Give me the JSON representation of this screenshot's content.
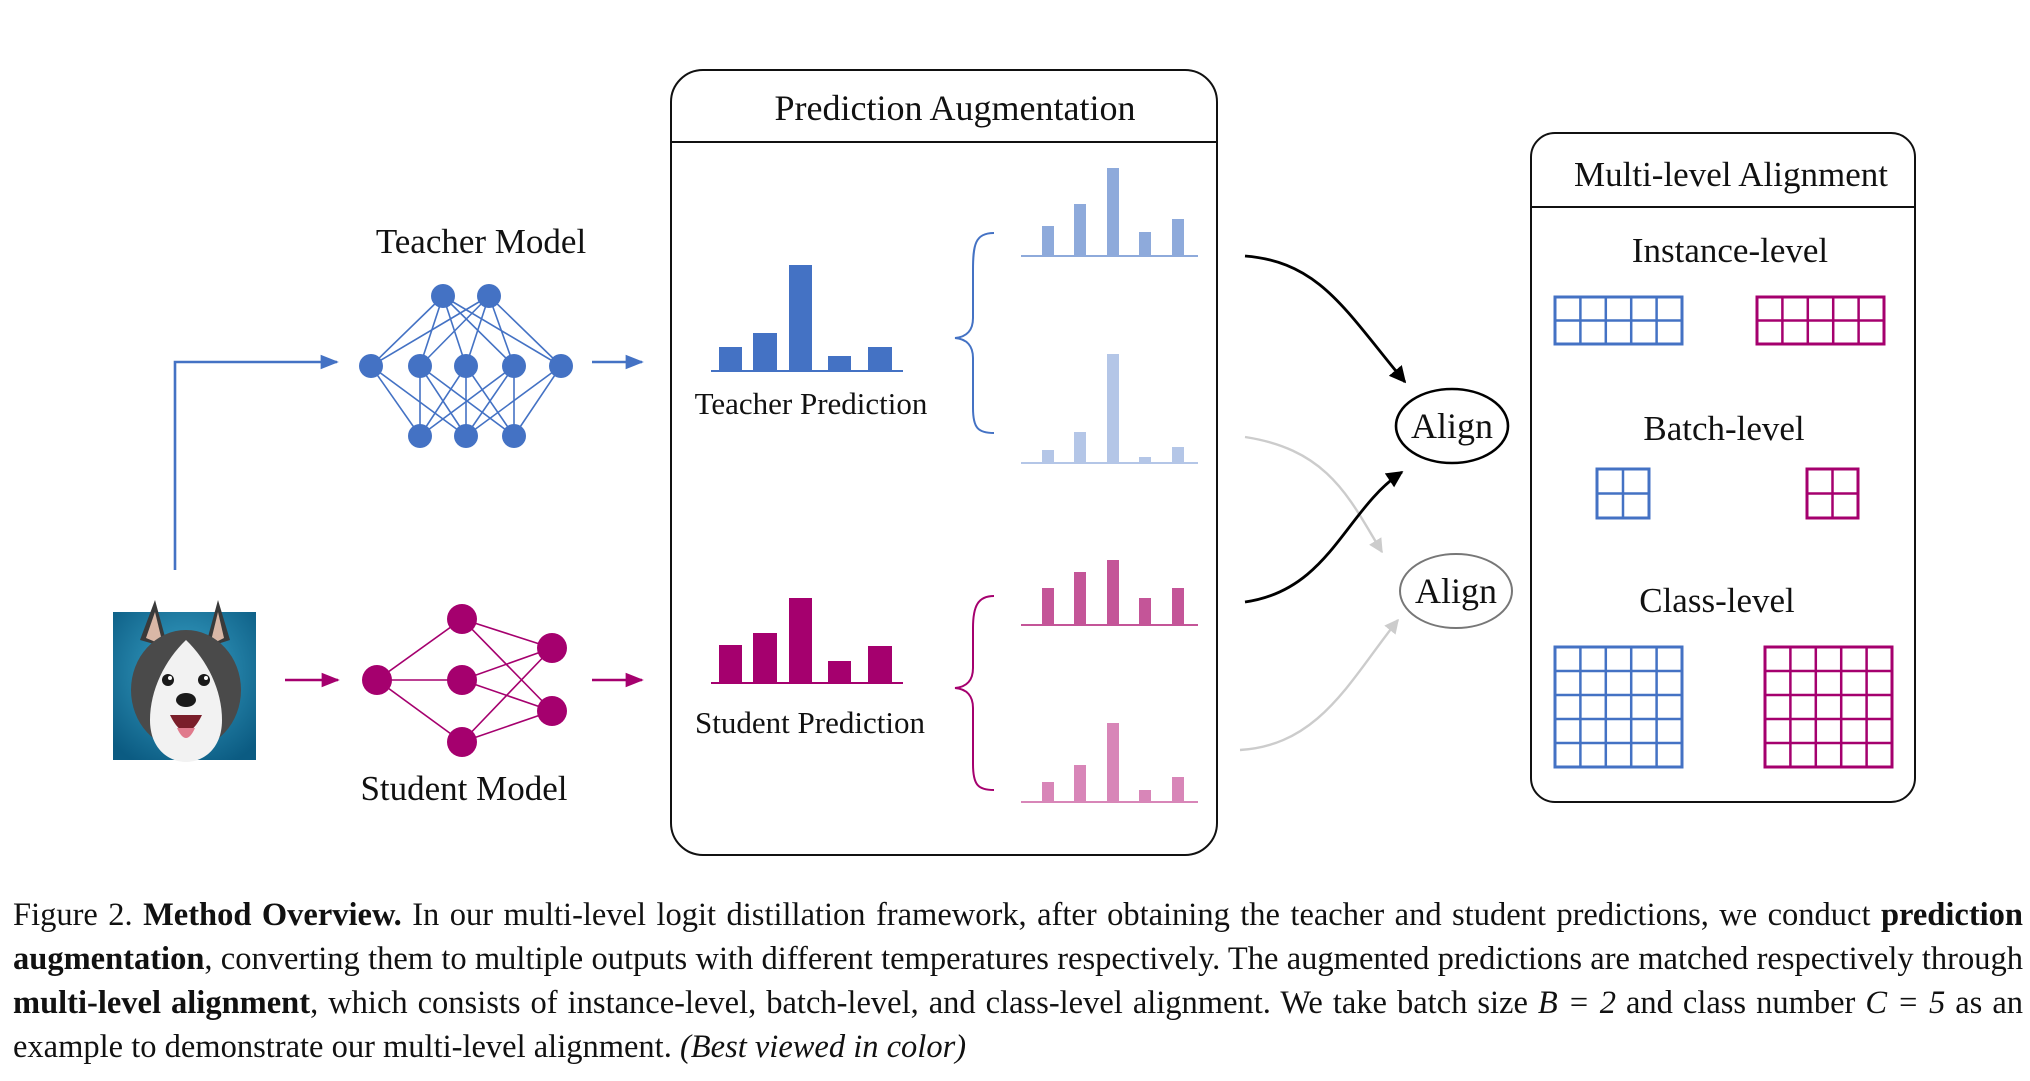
{
  "figure": {
    "teacher_model_label": "Teacher Model",
    "student_model_label": "Student Model",
    "prediction_augmentation_title": "Prediction Augmentation",
    "teacher_prediction_label": "Teacher Prediction",
    "student_prediction_label": "Student Prediction",
    "align_label_1": "Align",
    "align_label_2": "Align",
    "multi_level_alignment_title": "Multi-level Alignment",
    "instance_level_label": "Instance-level",
    "batch_level_label": "Batch-level",
    "class_level_label": "Class-level",
    "input_image": "husky dog photo",
    "colors": {
      "teacher": "#4472c4",
      "teacher_light": "#8eaadb",
      "teacher_lighter": "#b4c6e7",
      "student": "#a5006e",
      "student_light": "#c45598",
      "student_lighter": "#d886b8",
      "black_arrow": "#000000",
      "gray_arrow": "#cccccc"
    },
    "grids": {
      "instance_level": {
        "rows": 2,
        "cols": 5
      },
      "batch_level": {
        "rows": 2,
        "cols": 2
      },
      "class_level": {
        "rows": 5,
        "cols": 5
      }
    }
  },
  "caption": {
    "figure_number": "Figure 2.",
    "title": "Method Overview.",
    "text_1": " In our multi-level logit distillation framework, after obtaining the teacher and student predictions, we conduct ",
    "bold_1": "prediction augmentation",
    "text_2": ", converting them to multiple outputs with different temperatures respectively. The augmented predictions are matched respectively through ",
    "bold_2": "multi-level alignment",
    "text_3": ", which consists of instance-level, batch-level, and class-level alignment. We take batch size ",
    "math_b": "B = 2",
    "text_4": " and class number ",
    "math_c": "C = 5",
    "text_5": " as an example to demonstrate our multi-level alignment. ",
    "italic": "(Best viewed in color)"
  }
}
